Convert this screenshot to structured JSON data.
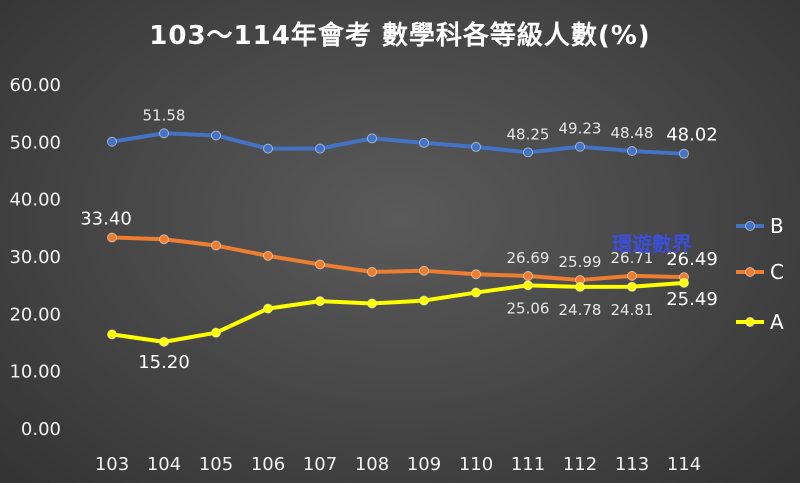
{
  "chart_data": {
    "type": "line",
    "title": "103～114年會考 數學科各等級人數(%)",
    "categories": [
      "103",
      "104",
      "105",
      "106",
      "107",
      "108",
      "109",
      "110",
      "111",
      "112",
      "113",
      "114"
    ],
    "ylim": [
      0,
      60
    ],
    "yticks": [
      "0.00",
      "10.00",
      "20.00",
      "30.00",
      "40.00",
      "50.00",
      "60.00"
    ],
    "grid": false,
    "legend_position": "right",
    "series": [
      {
        "name": "B",
        "color": "#4472c4",
        "values": [
          50.1,
          51.58,
          51.2,
          48.9,
          48.9,
          50.7,
          49.9,
          49.2,
          48.25,
          49.23,
          48.48,
          48.02
        ],
        "labels": [
          "",
          "51.58",
          "",
          "",
          "",
          "",
          "",
          "",
          "48.25",
          "49.23",
          "48.48",
          "48.02"
        ]
      },
      {
        "name": "C",
        "color": "#ed7d31",
        "values": [
          33.4,
          33.1,
          32.0,
          30.2,
          28.7,
          27.4,
          27.6,
          27.0,
          26.69,
          25.99,
          26.71,
          26.49
        ],
        "labels": [
          "33.40",
          "",
          "",
          "",
          "",
          "",
          "",
          "",
          "26.69",
          "25.99",
          "26.71",
          "26.49"
        ]
      },
      {
        "name": "A",
        "color": "#ffff00",
        "values": [
          16.5,
          15.2,
          16.8,
          21.0,
          22.3,
          21.9,
          22.4,
          23.8,
          25.06,
          24.78,
          24.81,
          25.49
        ],
        "labels": [
          "",
          "15.20",
          "",
          "",
          "",
          "",
          "",
          "",
          "25.06",
          "24.78",
          "24.81",
          "25.49"
        ]
      }
    ]
  },
  "watermark": "環遊數界"
}
